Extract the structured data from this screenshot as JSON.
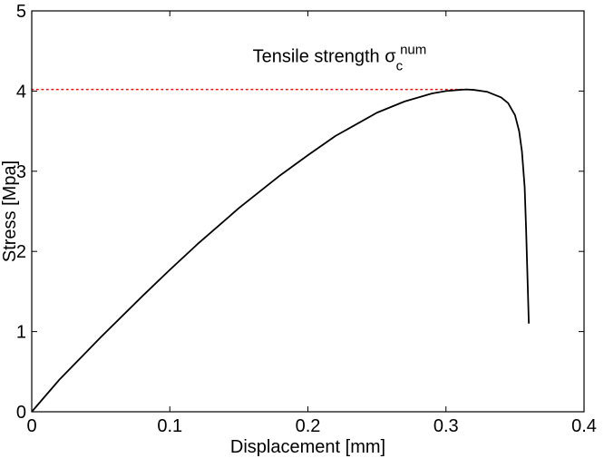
{
  "chart_data": {
    "type": "line",
    "title": "",
    "xlabel": "Displacement [mm]",
    "ylabel": "Stress [Mpa]",
    "xlim": [
      0,
      0.4
    ],
    "ylim": [
      0,
      5
    ],
    "xticks": [
      0,
      0.1,
      0.2,
      0.3,
      0.4
    ],
    "xtick_labels": [
      "0",
      "0.1",
      "0.2",
      "0.3",
      "0.4"
    ],
    "yticks": [
      0,
      1,
      2,
      3,
      4,
      5
    ],
    "ytick_labels": [
      "0",
      "1",
      "2",
      "3",
      "4",
      "5"
    ],
    "grid": false,
    "series": [
      {
        "color": "#000000",
        "x": [
          0,
          0.02,
          0.05,
          0.08,
          0.1,
          0.12,
          0.15,
          0.18,
          0.2,
          0.22,
          0.25,
          0.27,
          0.29,
          0.3,
          0.31,
          0.315,
          0.32,
          0.33,
          0.34,
          0.345,
          0.35,
          0.353,
          0.355,
          0.357,
          0.358,
          0.359,
          0.36
        ],
        "y": [
          0,
          0.4,
          0.93,
          1.44,
          1.77,
          2.09,
          2.54,
          2.95,
          3.2,
          3.44,
          3.73,
          3.87,
          3.97,
          4.0,
          4.015,
          4.02,
          4.015,
          3.99,
          3.92,
          3.85,
          3.7,
          3.5,
          3.25,
          2.8,
          2.3,
          1.7,
          1.1
        ]
      }
    ],
    "reference_line": {
      "y": 4.02,
      "x_from": 0,
      "x_to": 0.315,
      "color": "#ff0000",
      "style": "dotted"
    },
    "annotation": {
      "text": "Tensile strength σ",
      "subscript": "c",
      "superscript": "num",
      "x": 0.16,
      "y": 4.36
    }
  }
}
